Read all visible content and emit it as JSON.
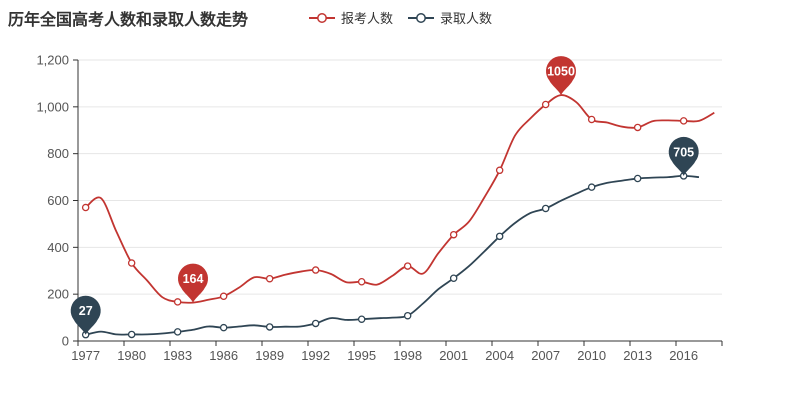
{
  "title": "历年全国高考人数和录取人数走势",
  "legend": [
    {
      "label": "报考人数",
      "color": "#c23531"
    },
    {
      "label": "录取人数",
      "color": "#2f4554"
    }
  ],
  "chart_data": {
    "type": "line",
    "title": "历年全国高考人数和录取人数走势",
    "xlabel": "",
    "ylabel": "",
    "ylim": [
      0,
      1200
    ],
    "yticks": [
      0,
      200,
      400,
      600,
      800,
      1000,
      1200
    ],
    "ytick_labels": [
      "0",
      "200",
      "400",
      "600",
      "800",
      "1,000",
      "1,200"
    ],
    "xtick_labels": [
      "1977",
      "1980",
      "1983",
      "1986",
      "1989",
      "1992",
      "1995",
      "1998",
      "2001",
      "2004",
      "2007",
      "2010",
      "2013",
      "2016"
    ],
    "grid": true,
    "smooth": true,
    "legend_position": "top-center",
    "symbol_every_n": 3,
    "categories": [
      "1977",
      "1978",
      "1979",
      "1980",
      "1981",
      "1982",
      "1983",
      "1984",
      "1985",
      "1986",
      "1987",
      "1988",
      "1989",
      "1990",
      "1991",
      "1992",
      "1993",
      "1994",
      "1995",
      "1996",
      "1997",
      "1998",
      "1999",
      "2000",
      "2001",
      "2002",
      "2003",
      "2004",
      "2005",
      "2006",
      "2007",
      "2008",
      "2009",
      "2010",
      "2011",
      "2012",
      "2013",
      "2014",
      "2015",
      "2016",
      "2017",
      "2018"
    ],
    "series": [
      {
        "name": "报考人数",
        "color": "#c23531",
        "values": [
          570,
          610,
          468,
          333,
          259,
          187,
          167,
          164,
          176,
          191,
          228,
          272,
          266,
          283,
          296,
          303,
          286,
          251,
          253,
          241,
          278,
          320,
          288,
          375,
          454,
          510,
          613,
          729,
          877,
          950,
          1010,
          1050,
          1020,
          946,
          933,
          915,
          912,
          939,
          942,
          940,
          940,
          975
        ],
        "markers": [
          {
            "year": "2008",
            "value": 1050,
            "label": "1050",
            "kind": "max"
          },
          {
            "year": "1984",
            "value": 164,
            "label": "164",
            "kind": "min"
          }
        ]
      },
      {
        "name": "录取人数",
        "color": "#2f4554",
        "values": [
          27,
          40,
          28,
          28,
          28,
          32,
          39,
          48,
          62,
          57,
          62,
          67,
          60,
          61,
          62,
          75,
          98,
          90,
          93,
          97,
          100,
          108,
          160,
          221,
          268,
          320,
          382,
          447,
          504,
          546,
          566,
          599,
          629,
          657,
          675,
          685,
          694,
          698,
          700,
          705,
          700,
          null
        ],
        "markers": [
          {
            "year": "2016",
            "value": 705,
            "label": "705",
            "kind": "max"
          },
          {
            "year": "1977",
            "value": 27,
            "label": "27",
            "kind": "min"
          }
        ]
      }
    ],
    "colors": {
      "grid_line": "#e6e6e6",
      "axis_line": "#333333",
      "tick_label": "#555555",
      "pin_text": "#ffffff",
      "background": "#ffffff"
    }
  }
}
